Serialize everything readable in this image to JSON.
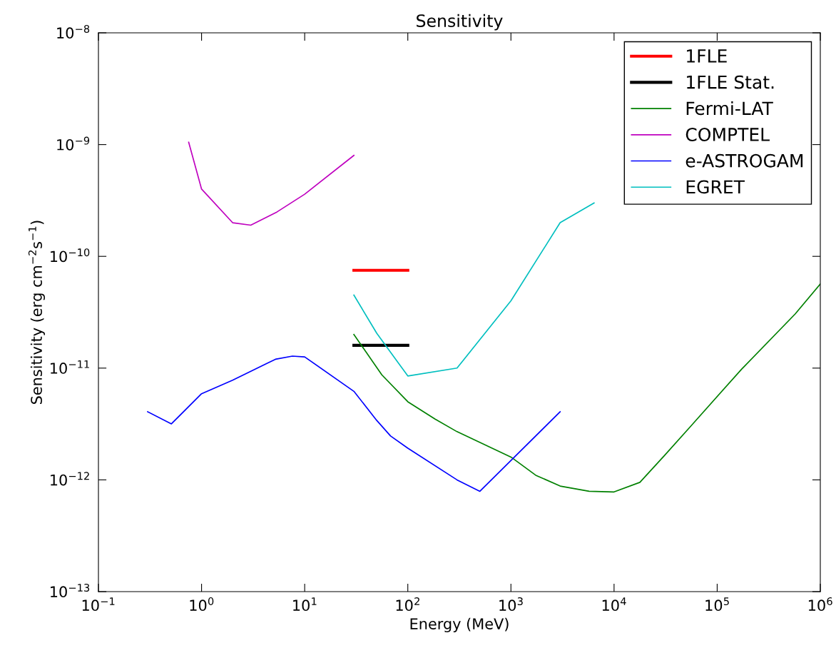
{
  "chart_data": {
    "type": "line",
    "title": "Sensitivity",
    "xlabel": "Energy (MeV)",
    "ylabel": "Sensitivity (erg cm$^{−2}$s$^{−1}$)",
    "log": "xy",
    "grid": false,
    "legend": "top right",
    "marker": "none",
    "line_style": "solid",
    "xlim": [
      0.1,
      1000000
    ],
    "ylim": [
      1e-13,
      1e-08
    ],
    "xticks": [
      {
        "value": 0.1,
        "label": "10$^{−1}$"
      },
      {
        "value": 1,
        "label": "10$^{0}$"
      },
      {
        "value": 10,
        "label": "10$^{1}$"
      },
      {
        "value": 100,
        "label": "10$^{2}$"
      },
      {
        "value": 1000,
        "label": "10$^{3}$"
      },
      {
        "value": 10000,
        "label": "10$^{4}$"
      },
      {
        "value": 100000,
        "label": "10$^{5}$"
      },
      {
        "value": 1000000,
        "label": "10$^{6}$"
      }
    ],
    "yticks": [
      {
        "value": 1e-13,
        "label": "10$^{−13}$"
      },
      {
        "value": 1e-12,
        "label": "10$^{−12}$"
      },
      {
        "value": 1e-11,
        "label": "10$^{−11}$"
      },
      {
        "value": 1e-10,
        "label": "10$^{−10}$"
      },
      {
        "value": 1e-09,
        "label": "10$^{−9}$"
      },
      {
        "value": 1e-08,
        "label": "10$^{−8}$"
      }
    ],
    "series": [
      {
        "name": "1FLE",
        "color": "#ff0000",
        "x": [
          30,
          100
        ],
        "values": [
          7.5e-11,
          7.5e-11
        ]
      },
      {
        "name": "1FLE Stat.",
        "color": "#000000",
        "x": [
          30,
          100
        ],
        "values": [
          1.6e-11,
          1.6e-11
        ]
      },
      {
        "name": "Fermi-LAT",
        "color": "#008000",
        "x": [
          30,
          56,
          100,
          184,
          300,
          1000,
          1740,
          3000,
          5730,
          10000,
          17800,
          31000,
          55000,
          173000,
          570000,
          1000000
        ],
        "values": [
          2e-11,
          8.7e-12,
          5e-12,
          3.5e-12,
          2.7e-12,
          1.6e-12,
          1.1e-12,
          8.8e-13,
          7.9e-13,
          7.8e-13,
          9.5e-13,
          1.66e-12,
          3e-12,
          9.8e-12,
          3.05e-11,
          5.65e-11
        ]
      },
      {
        "name": "COMPTEL",
        "color": "#bf00bf",
        "x": [
          0.75,
          1.0,
          2.0,
          3.0,
          5.4,
          10,
          30
        ],
        "values": [
          1.05e-09,
          4e-10,
          2e-10,
          1.9e-10,
          2.5e-10,
          3.6e-10,
          8e-10
        ]
      },
      {
        "name": "e-ASTROGAM",
        "color": "#0000ff",
        "x": [
          0.3,
          0.51,
          1.0,
          2.0,
          5.2,
          7.6,
          10,
          30,
          50,
          68,
          100,
          300,
          500,
          3000
        ],
        "values": [
          4.07e-12,
          3.17e-12,
          5.9e-12,
          7.8e-12,
          1.2e-11,
          1.28e-11,
          1.26e-11,
          6.2e-12,
          3.4e-12,
          2.47e-12,
          1.92e-12,
          1e-12,
          7.9e-13,
          4.07e-12
        ]
      },
      {
        "name": "EGRET",
        "color": "#00bfbf",
        "x": [
          30,
          50,
          100,
          300,
          1000,
          3000,
          6400
        ],
        "values": [
          4.5e-11,
          2.05e-11,
          8.5e-12,
          1e-11,
          4e-11,
          2e-10,
          3e-10
        ]
      }
    ]
  }
}
